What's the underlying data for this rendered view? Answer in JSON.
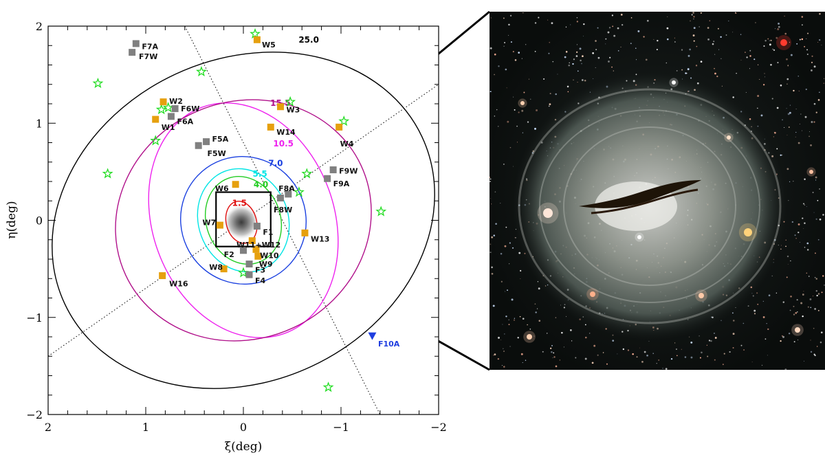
{
  "chart_data": {
    "type": "scatter",
    "xlabel": "ξ(deg)",
    "ylabel": "η(deg)",
    "xlim": [
      2,
      -2
    ],
    "ylim": [
      -2,
      2
    ],
    "x_ticks": [
      {
        "v": 2,
        "label": "2"
      },
      {
        "v": 1,
        "label": "1"
      },
      {
        "v": 0,
        "label": "0"
      },
      {
        "v": -1,
        "label": "−1"
      },
      {
        "v": -2,
        "label": "−2"
      }
    ],
    "y_ticks": [
      {
        "v": 2,
        "label": "2"
      },
      {
        "v": 1,
        "label": "1"
      },
      {
        "v": 0,
        "label": "0"
      },
      {
        "v": -1,
        "label": "−1"
      },
      {
        "v": -2,
        "label": "−2"
      }
    ],
    "minor_step": 0.2,
    "colors": {
      "wide_field": "#e6a00e",
      "field": "#808080",
      "star": "#22dd22",
      "F10A": "#1f3ee0",
      "rect": "#000000"
    },
    "contours": [
      {
        "label": "1.5",
        "cx": 0.02,
        "cy": -0.02,
        "a": 0.155,
        "b": 0.22,
        "rot": -15,
        "color": "#e01010",
        "lx": 0.04,
        "ly": 0.15
      },
      {
        "label": "4.0",
        "cx": 0.0,
        "cy": 0.0,
        "a": 0.38,
        "b": 0.46,
        "rot": -20,
        "color": "#22cc22",
        "lx": -0.18,
        "ly": 0.34
      },
      {
        "label": "5.5",
        "cx": 0.0,
        "cy": 0.0,
        "a": 0.46,
        "b": 0.54,
        "rot": -20,
        "color": "#00e5e5",
        "lx": -0.17,
        "ly": 0.45
      },
      {
        "label": "7.0",
        "cx": 0.0,
        "cy": 0.0,
        "a": 0.64,
        "b": 0.66,
        "rot": -25,
        "color": "#1a40e0",
        "lx": -0.33,
        "ly": 0.56
      },
      {
        "label": "10.5",
        "cx": 0.0,
        "cy": 0.0,
        "a": 0.93,
        "b": 1.24,
        "rot": -20,
        "color": "#ee22ee",
        "lx": -0.41,
        "ly": 0.76
      },
      {
        "label": "15.5",
        "cx": 0.0,
        "cy": 0.0,
        "a": 1.33,
        "b": 1.22,
        "rot": -25,
        "color": "#b0108a",
        "lx": -0.38,
        "ly": 1.18
      },
      {
        "label": "25.0",
        "cx": 0.0,
        "cy": 0.0,
        "a": 2.02,
        "b": 1.66,
        "rot": -25,
        "color": "#000000",
        "lx": -0.67,
        "ly": 1.83
      }
    ],
    "axis_lines": [
      {
        "x1": 0.6,
        "y1": 2.0,
        "x2": -1.4,
        "y2": -2.0
      },
      {
        "x1": 2.0,
        "y1": -1.4,
        "x2": -2.0,
        "y2": 1.4
      }
    ],
    "rect": {
      "x0": 0.28,
      "y0": -0.27,
      "x1": -0.28,
      "y1": 0.29
    },
    "wide_fields": [
      {
        "name": "W1",
        "x": 0.9,
        "y": 1.04,
        "lx": 0.84,
        "ly": 0.96
      },
      {
        "name": "W2",
        "x": 0.82,
        "y": 1.22,
        "lx": 0.76,
        "ly": 1.23
      },
      {
        "name": "W3",
        "x": -0.38,
        "y": 1.17,
        "lx": -0.44,
        "ly": 1.14
      },
      {
        "name": "W4",
        "x": -0.98,
        "y": 0.96,
        "lx": -0.99,
        "ly": 0.79
      },
      {
        "name": "W5",
        "x": -0.14,
        "y": 1.86,
        "lx": -0.19,
        "ly": 1.81
      },
      {
        "name": "W6",
        "x": 0.08,
        "y": 0.37,
        "lx": 0.29,
        "ly": 0.33
      },
      {
        "name": "W7",
        "x": 0.24,
        "y": -0.05,
        "lx": 0.42,
        "ly": -0.02
      },
      {
        "name": "W8",
        "x": 0.2,
        "y": -0.5,
        "lx": 0.35,
        "ly": -0.48
      },
      {
        "name": "W9",
        "x": -0.15,
        "y": -0.37,
        "lx": -0.16,
        "ly": -0.45
      },
      {
        "name": "W10",
        "x": -0.13,
        "y": -0.3,
        "lx": -0.17,
        "ly": -0.36
      },
      {
        "name": "W11+W12",
        "x": -0.09,
        "y": -0.21,
        "lx": 0.07,
        "ly": -0.25
      },
      {
        "name": "W13",
        "x": -0.63,
        "y": -0.13,
        "lx": -0.69,
        "ly": -0.19
      },
      {
        "name": "W14",
        "x": -0.28,
        "y": 0.96,
        "lx": -0.34,
        "ly": 0.91
      },
      {
        "name": "W16",
        "x": 0.83,
        "y": -0.57,
        "lx": 0.76,
        "ly": -0.65
      }
    ],
    "fields": [
      {
        "name": "F1",
        "x": -0.14,
        "y": -0.06,
        "lx": -0.2,
        "ly": -0.12
      },
      {
        "name": "F2",
        "x": 0.0,
        "y": -0.31,
        "lx": 0.2,
        "ly": -0.35
      },
      {
        "name": "F3",
        "x": -0.06,
        "y": -0.45,
        "lx": -0.12,
        "ly": -0.51
      },
      {
        "name": "F4",
        "x": -0.06,
        "y": -0.56,
        "lx": -0.12,
        "ly": -0.62
      },
      {
        "name": "F5A",
        "x": 0.38,
        "y": 0.81,
        "lx": 0.32,
        "ly": 0.84
      },
      {
        "name": "F5W",
        "x": 0.46,
        "y": 0.77,
        "lx": 0.37,
        "ly": 0.69
      },
      {
        "name": "F6A",
        "x": 0.74,
        "y": 1.07,
        "lx": 0.68,
        "ly": 1.02
      },
      {
        "name": "F6W",
        "x": 0.7,
        "y": 1.15,
        "lx": 0.64,
        "ly": 1.15
      },
      {
        "name": "F7A",
        "x": 1.1,
        "y": 1.82,
        "lx": 1.04,
        "ly": 1.79
      },
      {
        "name": "F7W",
        "x": 1.14,
        "y": 1.73,
        "lx": 1.07,
        "ly": 1.69
      },
      {
        "name": "F8A",
        "x": -0.46,
        "y": 0.27,
        "lx": -0.36,
        "ly": 0.33
      },
      {
        "name": "F8W",
        "x": -0.38,
        "y": 0.23,
        "lx": -0.31,
        "ly": 0.11
      },
      {
        "name": "F9A",
        "x": -0.86,
        "y": 0.43,
        "lx": -0.92,
        "ly": 0.38
      },
      {
        "name": "F9W",
        "x": -0.92,
        "y": 0.52,
        "lx": -0.98,
        "ly": 0.51
      }
    ],
    "F10A": {
      "name": "F10A",
      "x": -1.32,
      "y": -1.19,
      "lx": -1.38,
      "ly": -1.27
    },
    "stars": [
      {
        "x": -0.12,
        "y": 1.92
      },
      {
        "x": -0.48,
        "y": 1.22
      },
      {
        "x": 0.43,
        "y": 1.53
      },
      {
        "x": 1.49,
        "y": 1.41
      },
      {
        "x": 0.84,
        "y": 1.14
      },
      {
        "x": 0.77,
        "y": 1.16
      },
      {
        "x": -1.03,
        "y": 1.02
      },
      {
        "x": 0.9,
        "y": 0.82
      },
      {
        "x": 1.39,
        "y": 0.48
      },
      {
        "x": -0.65,
        "y": 0.48
      },
      {
        "x": -0.57,
        "y": 0.29
      },
      {
        "x": -1.41,
        "y": 0.09
      },
      {
        "x": 0.0,
        "y": -0.54
      },
      {
        "x": -0.87,
        "y": -1.72
      }
    ],
    "galaxy": {
      "x": 0.02,
      "y": -0.02
    }
  },
  "zoom_image": {
    "icon": "galaxy-photo-icon"
  }
}
